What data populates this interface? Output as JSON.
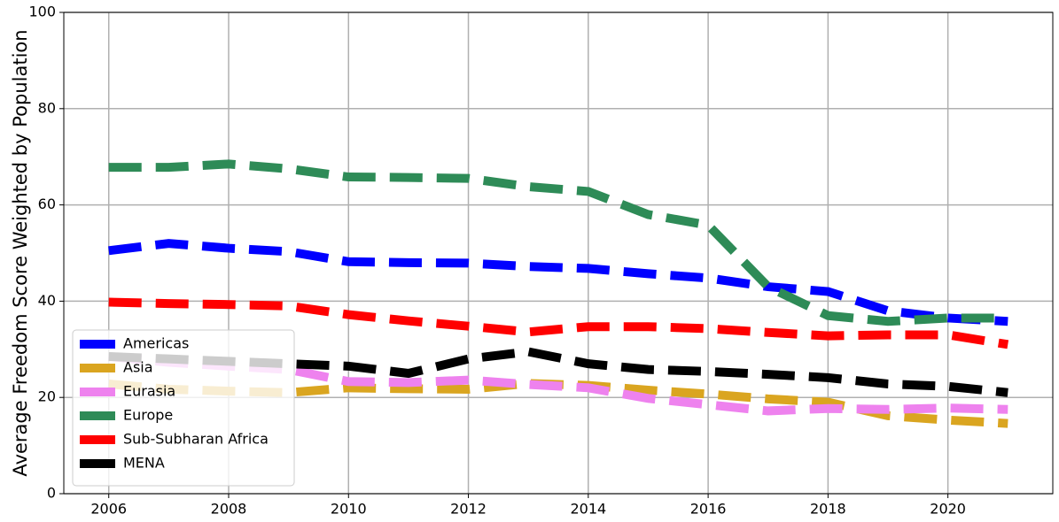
{
  "chart_data": {
    "type": "line",
    "ylabel": "Average Freedom Score Weighted by Population",
    "x": [
      2006,
      2007,
      2008,
      2009,
      2010,
      2011,
      2012,
      2013,
      2014,
      2015,
      2016,
      2017,
      2018,
      2019,
      2020,
      2021
    ],
    "xlim": [
      2005.25,
      2021.75
    ],
    "xticks": [
      2006,
      2008,
      2010,
      2012,
      2014,
      2016,
      2018,
      2020
    ],
    "ylim": [
      0,
      100
    ],
    "yticks": [
      0,
      20,
      40,
      60,
      80,
      100
    ],
    "grid": true,
    "legend": "lower left",
    "series": [
      {
        "name": "Americas",
        "color": "#0000ff",
        "values": [
          50.5,
          52,
          51,
          50.3,
          48.2,
          48,
          47.9,
          47.2,
          46.8,
          45.7,
          44.8,
          43,
          42,
          38,
          36.5,
          35.8
        ]
      },
      {
        "name": "Asia",
        "color": "#daa520",
        "values": [
          22.8,
          21.7,
          21.3,
          21,
          22,
          21.8,
          21.7,
          22.9,
          22.5,
          21.5,
          20.7,
          19.7,
          19,
          16.2,
          15.3,
          14.6
        ]
      },
      {
        "name": "Eurasia",
        "color": "#ee82ee",
        "values": [
          28.5,
          27.3,
          26.5,
          25.8,
          23.3,
          23.1,
          23.6,
          22.7,
          22,
          19.8,
          18.5,
          17.2,
          17.7,
          17.5,
          17.8,
          17.5
        ]
      },
      {
        "name": "Europe",
        "color": "#2e8b57",
        "values": [
          67.8,
          67.8,
          68.5,
          67.5,
          65.8,
          65.7,
          65.5,
          63.8,
          62.8,
          58,
          55.8,
          43,
          37,
          35.8,
          36.5,
          36.5
        ]
      },
      {
        "name": "Sub-Subharan Africa",
        "color": "#ff0000",
        "values": [
          39.8,
          39.5,
          39.3,
          39,
          37.2,
          35.9,
          34.8,
          33.6,
          34.7,
          34.7,
          34.3,
          33.5,
          32.8,
          33,
          33,
          31
        ]
      },
      {
        "name": "MENA",
        "color": "#000000",
        "values": [
          28.5,
          28,
          27.5,
          27,
          26.5,
          25,
          28,
          29.5,
          27,
          25.8,
          25.4,
          24.8,
          24.1,
          22.8,
          22.3,
          21
        ]
      }
    ]
  }
}
